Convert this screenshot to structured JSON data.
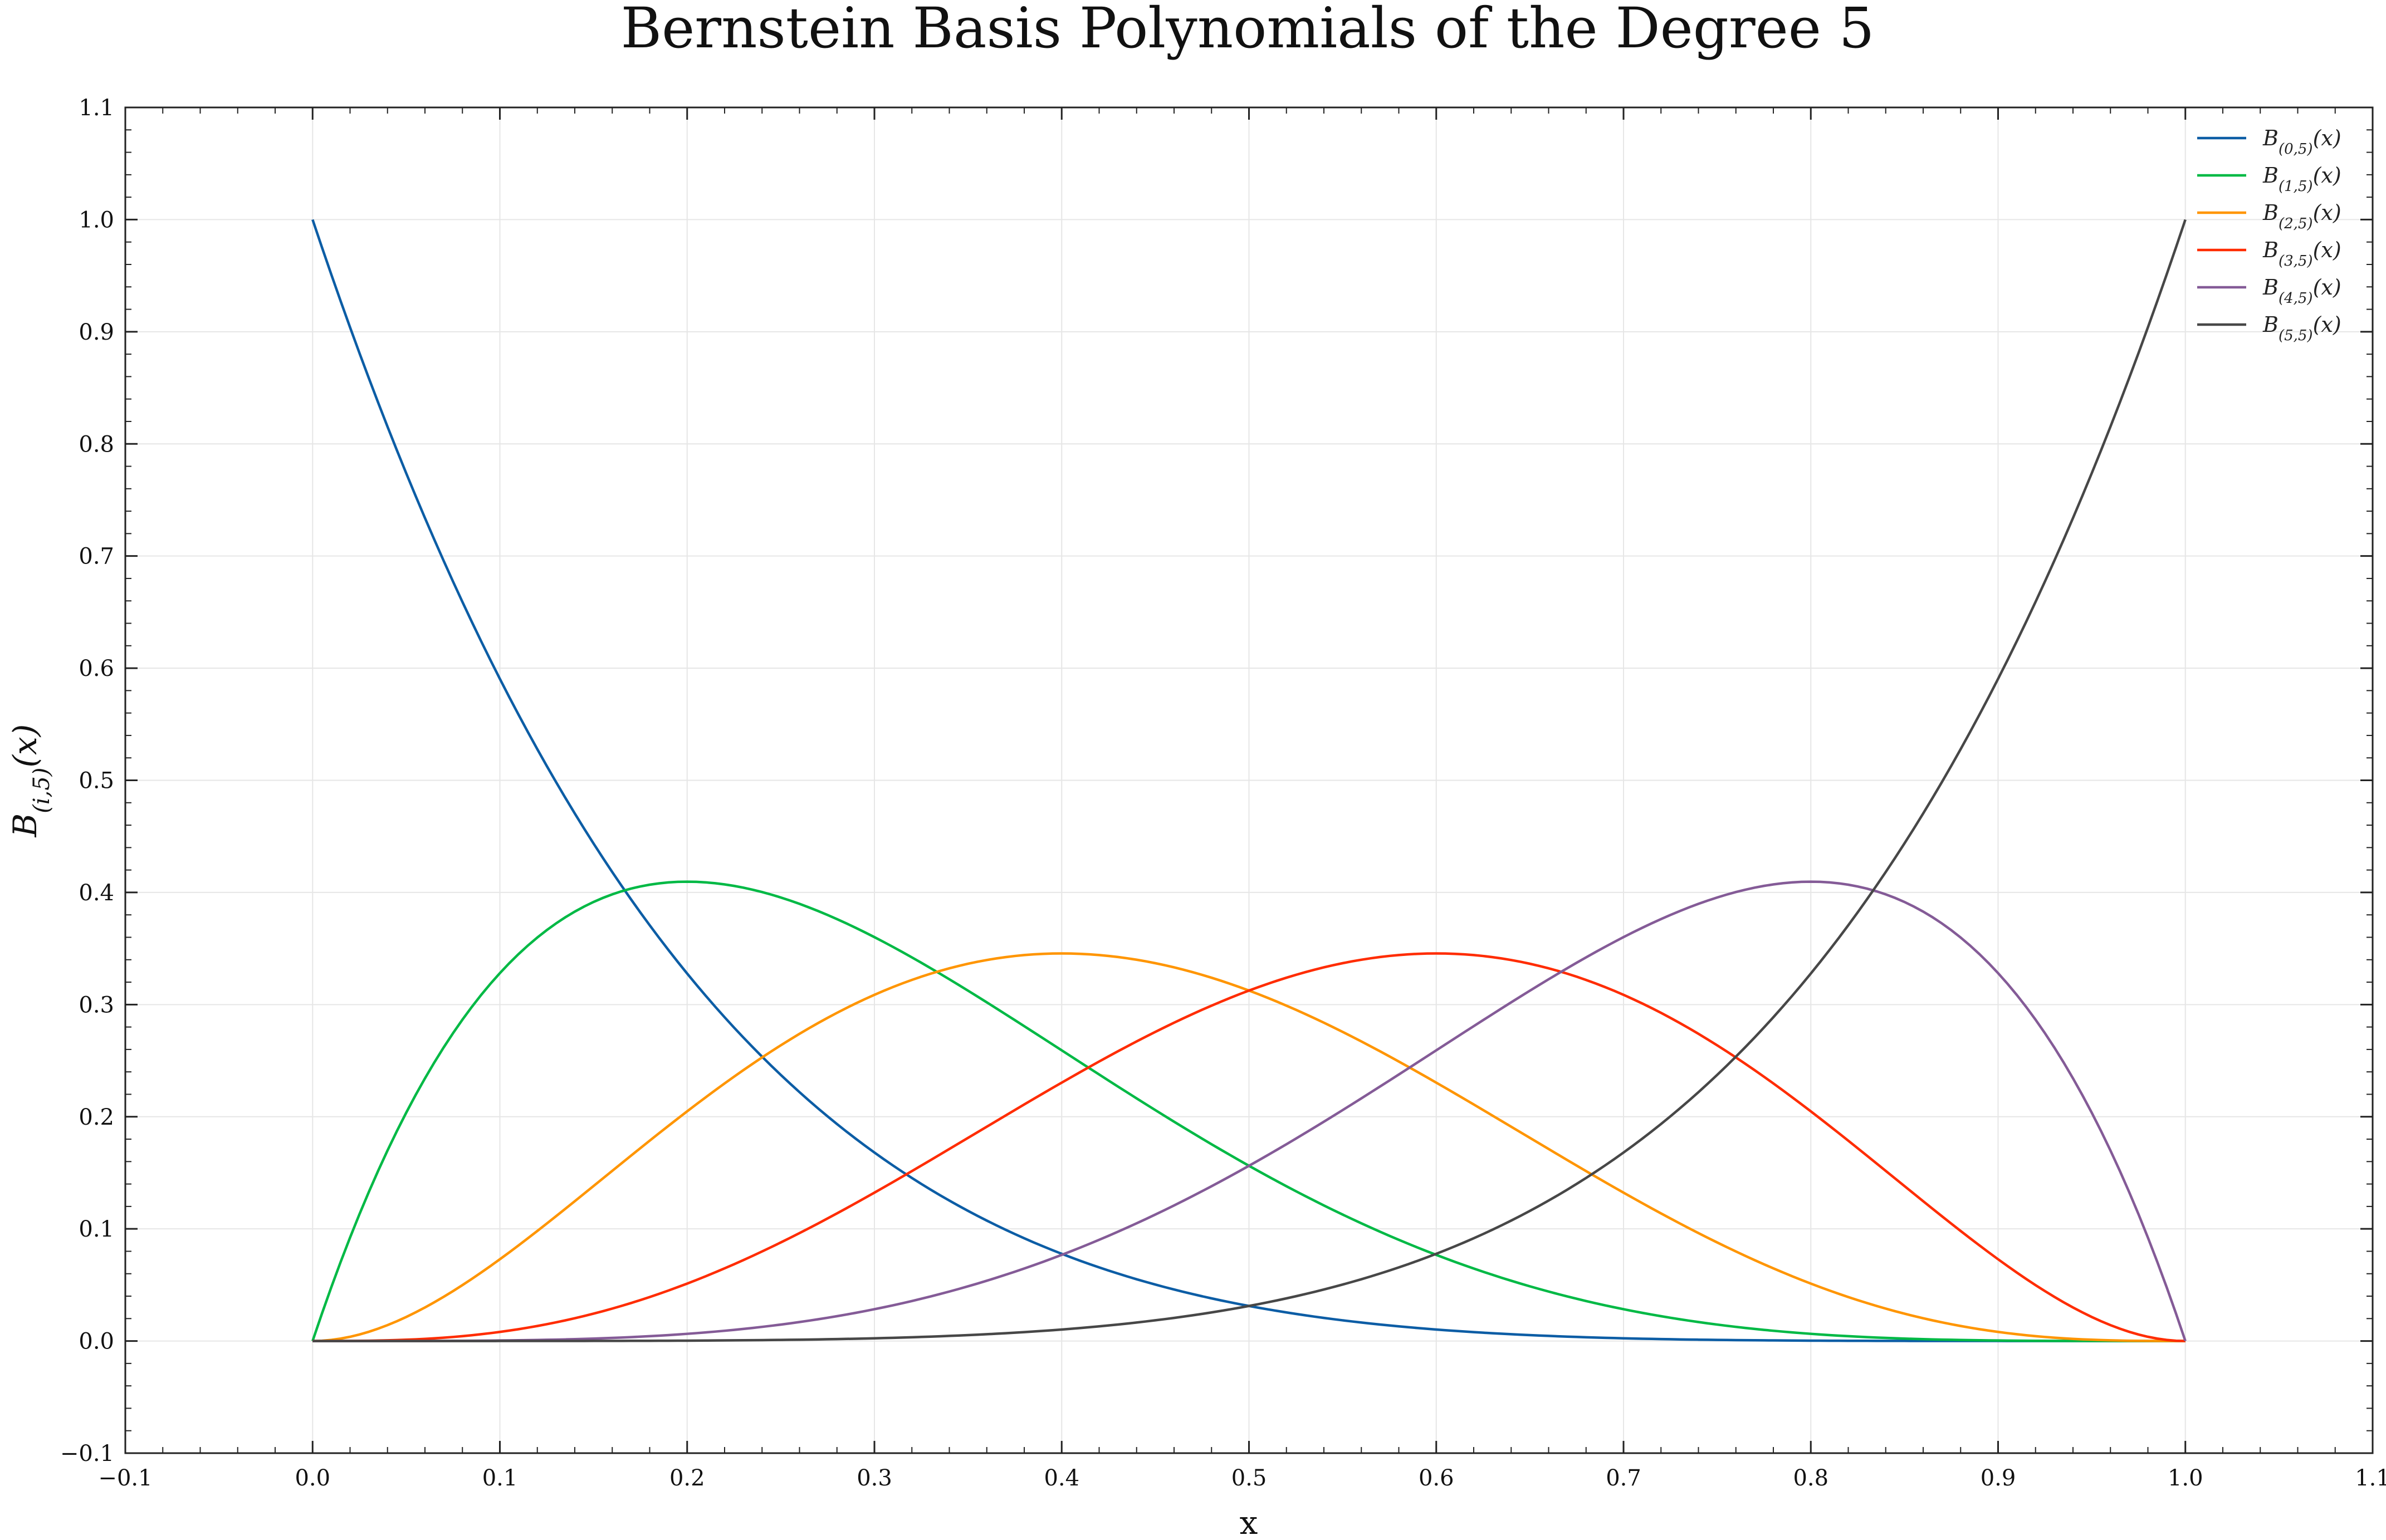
{
  "chart_data": {
    "type": "line",
    "title": "Bernstein Basis Polynomials of the Degree 5",
    "xlabel": "x",
    "ylabel_parts": {
      "base": "B",
      "sub": "(i,5)",
      "arg": "(x)"
    },
    "xlim": [
      -0.1,
      1.1
    ],
    "ylim": [
      -0.1,
      1.1
    ],
    "xticks": [
      -0.1,
      0.0,
      0.1,
      0.2,
      0.3,
      0.4,
      0.5,
      0.6,
      0.7,
      0.8,
      0.9,
      1.0,
      1.1
    ],
    "xtick_labels": [
      "−0.1",
      "0.0",
      "0.1",
      "0.2",
      "0.3",
      "0.4",
      "0.5",
      "0.6",
      "0.7",
      "0.8",
      "0.9",
      "1.0",
      "1.1"
    ],
    "yticks": [
      -0.1,
      0.0,
      0.1,
      0.2,
      0.3,
      0.4,
      0.5,
      0.6,
      0.7,
      0.8,
      0.9,
      1.0,
      1.1
    ],
    "ytick_labels": [
      "−0.1",
      "0.0",
      "0.1",
      "0.2",
      "0.3",
      "0.4",
      "0.5",
      "0.6",
      "0.7",
      "0.8",
      "0.9",
      "1.0",
      "1.1"
    ],
    "grid": true,
    "legend_position": "top-right",
    "x": [
      0.0,
      0.05,
      0.1,
      0.15,
      0.2,
      0.25,
      0.3,
      0.35,
      0.4,
      0.45,
      0.5,
      0.55,
      0.6,
      0.65,
      0.7,
      0.75,
      0.8,
      0.85,
      0.9,
      0.95,
      1.0
    ],
    "series": [
      {
        "label_base": "B",
        "label_sub": "(0,5)",
        "label_arg": "(x)",
        "color": "#0C5DA5",
        "values": [
          1.0,
          0.774,
          0.59,
          0.444,
          0.328,
          0.237,
          0.168,
          0.116,
          0.078,
          0.05,
          0.031,
          0.018,
          0.01,
          0.005,
          0.002,
          0.001,
          0.0,
          0.0,
          0.0,
          0.0,
          0.0
        ]
      },
      {
        "label_base": "B",
        "label_sub": "(1,5)",
        "label_arg": "(x)",
        "color": "#00B945",
        "values": [
          0.0,
          0.204,
          0.328,
          0.392,
          0.41,
          0.396,
          0.36,
          0.312,
          0.259,
          0.206,
          0.156,
          0.113,
          0.077,
          0.049,
          0.028,
          0.015,
          0.006,
          0.002,
          0.0,
          0.0,
          0.0
        ]
      },
      {
        "label_base": "B",
        "label_sub": "(2,5)",
        "label_arg": "(x)",
        "color": "#FF9500",
        "values": [
          0.0,
          0.021,
          0.073,
          0.138,
          0.205,
          0.264,
          0.309,
          0.336,
          0.346,
          0.337,
          0.313,
          0.276,
          0.23,
          0.181,
          0.132,
          0.088,
          0.051,
          0.024,
          0.008,
          0.001,
          0.0
        ]
      },
      {
        "label_base": "B",
        "label_sub": "(3,5)",
        "label_arg": "(x)",
        "color": "#FF2C00",
        "values": [
          0.0,
          0.001,
          0.008,
          0.024,
          0.051,
          0.088,
          0.132,
          0.181,
          0.23,
          0.276,
          0.313,
          0.337,
          0.346,
          0.336,
          0.309,
          0.264,
          0.205,
          0.138,
          0.073,
          0.021,
          0.0
        ]
      },
      {
        "label_base": "B",
        "label_sub": "(4,5)",
        "label_arg": "(x)",
        "color": "#845B97",
        "values": [
          0.0,
          0.0,
          0.0,
          0.002,
          0.006,
          0.015,
          0.028,
          0.049,
          0.077,
          0.113,
          0.156,
          0.206,
          0.259,
          0.312,
          0.36,
          0.396,
          0.41,
          0.392,
          0.328,
          0.204,
          0.0
        ]
      },
      {
        "label_base": "B",
        "label_sub": "(5,5)",
        "label_arg": "(x)",
        "color": "#474747",
        "values": [
          0.0,
          0.0,
          0.0,
          0.0,
          0.0,
          0.001,
          0.002,
          0.005,
          0.01,
          0.018,
          0.031,
          0.05,
          0.078,
          0.116,
          0.168,
          0.237,
          0.328,
          0.444,
          0.59,
          0.774,
          1.0
        ]
      }
    ]
  }
}
